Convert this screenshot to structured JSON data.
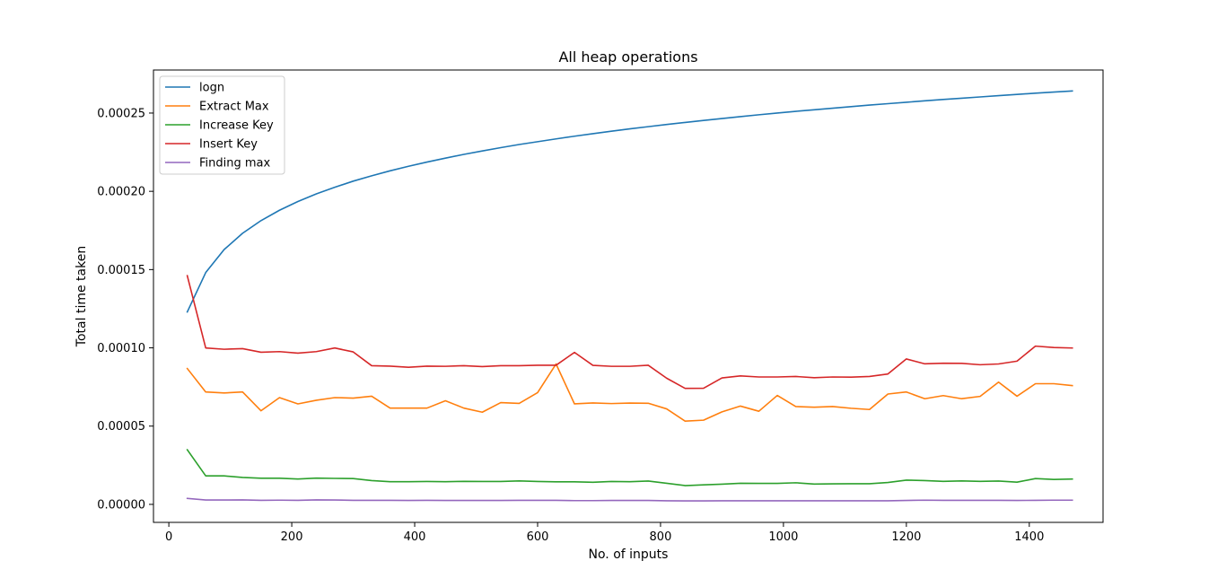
{
  "chart_data": {
    "type": "line",
    "title": "All heap operations",
    "xlabel": "No. of inputs",
    "ylabel": "Total time taken",
    "xlim": [
      -25,
      1520
    ],
    "ylim": [
      -1.15e-05,
      0.0002775
    ],
    "xticks": [
      0,
      200,
      400,
      600,
      800,
      1000,
      1200,
      1400
    ],
    "xtick_labels": [
      "0",
      "200",
      "400",
      "600",
      "800",
      "1000",
      "1200",
      "1400"
    ],
    "yticks": [
      0,
      5e-05,
      0.0001,
      0.00015,
      0.0002,
      0.00025
    ],
    "ytick_labels": [
      "0.00000",
      "0.00005",
      "0.00010",
      "0.00015",
      "0.00020",
      "0.00025"
    ],
    "grid": false,
    "legend_position": "top-left",
    "x": [
      30,
      60,
      90,
      120,
      150,
      180,
      210,
      240,
      270,
      300,
      330,
      360,
      390,
      420,
      450,
      480,
      510,
      540,
      570,
      600,
      630,
      660,
      690,
      720,
      750,
      780,
      810,
      840,
      870,
      900,
      930,
      960,
      990,
      1020,
      1050,
      1080,
      1110,
      1140,
      1170,
      1200,
      1230,
      1260,
      1290,
      1320,
      1350,
      1380,
      1410,
      1440,
      1470
    ],
    "series": [
      {
        "name": "logn",
        "color": "#1f77b4",
        "values": [
          0.0001229,
          0.0001481,
          0.0001628,
          0.0001732,
          0.0001813,
          0.0001879,
          0.0001935,
          0.0001984,
          0.0002026,
          0.0002065,
          0.0002099,
          0.0002131,
          0.000216,
          0.0002187,
          0.0002212,
          0.0002236,
          0.0002258,
          0.0002279,
          0.0002299,
          0.0002317,
          0.0002335,
          0.0002352,
          0.0002368,
          0.0002384,
          0.0002399,
          0.0002413,
          0.0002427,
          0.000244,
          0.0002453,
          0.0002465,
          0.0002477,
          0.0002489,
          0.00025,
          0.0002511,
          0.0002521,
          0.0002531,
          0.0002541,
          0.0002551,
          0.000256,
          0.0002569,
          0.0002578,
          0.0002587,
          0.0002595,
          0.0002603,
          0.0002611,
          0.0002619,
          0.0002627,
          0.0002634,
          0.0002641
        ]
      },
      {
        "name": "Extract Max",
        "color": "#ff7f0e",
        "values": [
          8.68e-05,
          7.18e-05,
          7.12e-05,
          7.18e-05,
          5.98e-05,
          6.82e-05,
          6.42e-05,
          6.65e-05,
          6.82e-05,
          6.79e-05,
          6.91e-05,
          6.15e-05,
          6.15e-05,
          6.15e-05,
          6.62e-05,
          6.15e-05,
          5.89e-05,
          6.5e-05,
          6.45e-05,
          7.14e-05,
          8.97e-05,
          6.42e-05,
          6.48e-05,
          6.44e-05,
          6.47e-05,
          6.46e-05,
          6.1e-05,
          5.32e-05,
          5.38e-05,
          5.91e-05,
          6.28e-05,
          5.95e-05,
          6.96e-05,
          6.25e-05,
          6.21e-05,
          6.25e-05,
          6.14e-05,
          6.06e-05,
          7.05e-05,
          7.18e-05,
          6.75e-05,
          6.95e-05,
          6.75e-05,
          6.9e-05,
          7.81e-05,
          6.91e-05,
          7.71e-05,
          7.71e-05,
          7.59e-05
        ]
      },
      {
        "name": "Increase Key",
        "color": "#2ca02c",
        "values": [
          3.49e-05,
          1.82e-05,
          1.82e-05,
          1.72e-05,
          1.67e-05,
          1.67e-05,
          1.62e-05,
          1.68e-05,
          1.66e-05,
          1.65e-05,
          1.52e-05,
          1.45e-05,
          1.45e-05,
          1.46e-05,
          1.45e-05,
          1.47e-05,
          1.46e-05,
          1.46e-05,
          1.5e-05,
          1.46e-05,
          1.44e-05,
          1.44e-05,
          1.41e-05,
          1.46e-05,
          1.45e-05,
          1.49e-05,
          1.35e-05,
          1.2e-05,
          1.25e-05,
          1.29e-05,
          1.35e-05,
          1.34e-05,
          1.34e-05,
          1.38e-05,
          1.3e-05,
          1.31e-05,
          1.32e-05,
          1.32e-05,
          1.4e-05,
          1.55e-05,
          1.52e-05,
          1.47e-05,
          1.5e-05,
          1.47e-05,
          1.49e-05,
          1.42e-05,
          1.65e-05,
          1.59e-05,
          1.62e-05
        ]
      },
      {
        "name": "Insert Key",
        "color": "#d62728",
        "values": [
          0.0001461,
          9.99e-05,
          9.91e-05,
          9.95e-05,
          9.72e-05,
          9.76e-05,
          9.66e-05,
          9.76e-05,
          9.99e-05,
          9.74e-05,
          8.86e-05,
          8.83e-05,
          8.76e-05,
          8.83e-05,
          8.82e-05,
          8.86e-05,
          8.8e-05,
          8.86e-05,
          8.86e-05,
          8.89e-05,
          8.89e-05,
          9.71e-05,
          8.88e-05,
          8.82e-05,
          8.82e-05,
          8.89e-05,
          8.06e-05,
          7.41e-05,
          7.42e-05,
          8.08e-05,
          8.21e-05,
          8.14e-05,
          8.14e-05,
          8.17e-05,
          8.09e-05,
          8.14e-05,
          8.13e-05,
          8.17e-05,
          8.33e-05,
          9.29e-05,
          8.98e-05,
          9.02e-05,
          9.01e-05,
          8.92e-05,
          8.97e-05,
          9.15e-05,
          0.0001011,
          0.0001002,
          9.99e-05
        ]
      },
      {
        "name": "Finding max",
        "color": "#9467bd",
        "values": [
          3.8e-06,
          2.8e-06,
          2.8e-06,
          2.9e-06,
          2.6e-06,
          2.7e-06,
          2.6e-06,
          2.9e-06,
          2.8e-06,
          2.6e-06,
          2.6e-06,
          2.6e-06,
          2.5e-06,
          2.6e-06,
          2.5e-06,
          2.5e-06,
          2.5e-06,
          2.5e-06,
          2.6e-06,
          2.6e-06,
          2.6e-06,
          2.4e-06,
          2.4e-06,
          2.5e-06,
          2.5e-06,
          2.5e-06,
          2.3e-06,
          2.2e-06,
          2.2e-06,
          2.3e-06,
          2.3e-06,
          2.3e-06,
          2.3e-06,
          2.3e-06,
          2.3e-06,
          2.3e-06,
          2.3e-06,
          2.3e-06,
          2.3e-06,
          2.5e-06,
          2.7e-06,
          2.6e-06,
          2.6e-06,
          2.6e-06,
          2.6e-06,
          2.5e-06,
          2.6e-06,
          2.7e-06,
          2.7e-06
        ]
      }
    ]
  }
}
